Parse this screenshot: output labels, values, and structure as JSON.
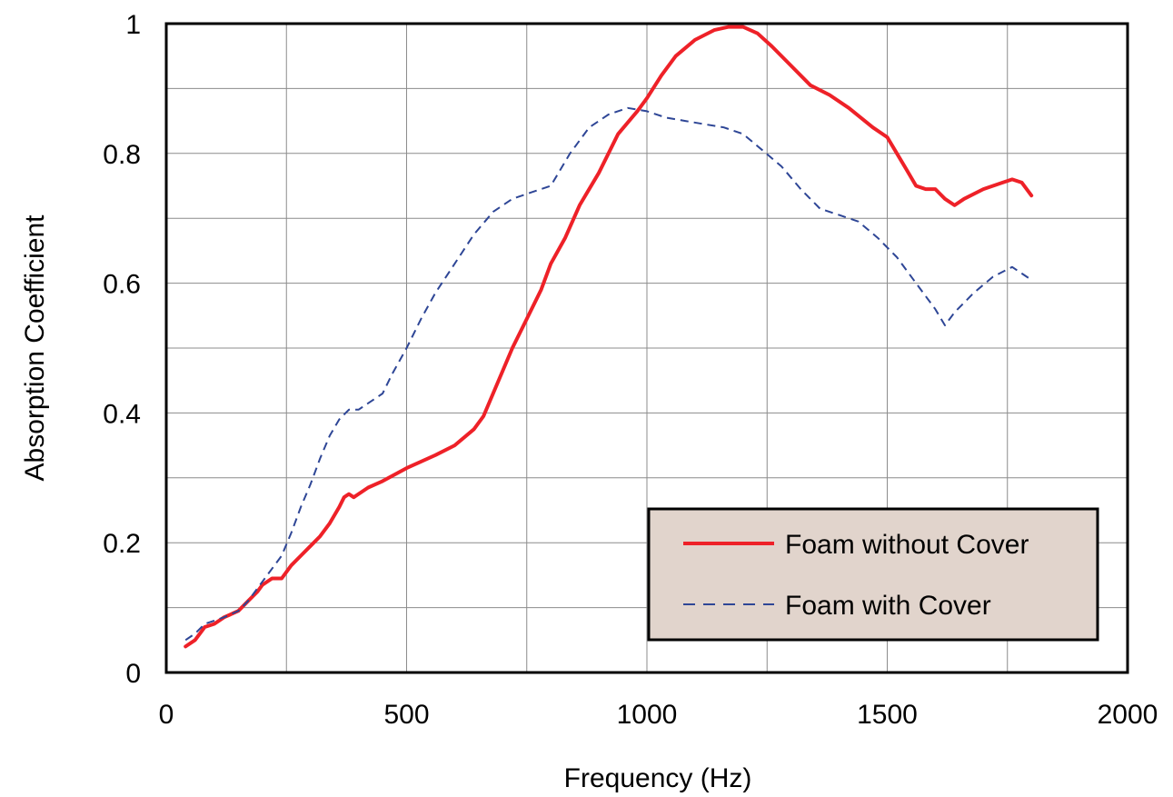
{
  "chart_data": {
    "type": "line",
    "title": "",
    "xlabel": "Frequency (Hz)",
    "ylabel": "Absorption Coefficient",
    "xlim": [
      0,
      2000
    ],
    "ylim": [
      0,
      1
    ],
    "x_ticks": [
      "0",
      "500",
      "1000",
      "1500",
      "2000"
    ],
    "y_ticks": [
      "0",
      "0.2",
      "0.4",
      "0.6",
      "0.8",
      "1"
    ],
    "x_tick_values": [
      0,
      500,
      1000,
      1500,
      2000
    ],
    "y_tick_values": [
      0,
      0.2,
      0.4,
      0.6,
      0.8,
      1
    ],
    "minor_x_grid": [
      250,
      750,
      1250,
      1750
    ],
    "minor_y_grid": [
      0.1,
      0.3,
      0.5,
      0.7,
      0.9
    ],
    "grid": true,
    "legend_position": "bottom-right",
    "series": [
      {
        "name": "Foam without Cover",
        "color": "#ee2128",
        "style": "solid",
        "x": [
          40,
          60,
          80,
          100,
          120,
          150,
          170,
          190,
          200,
          220,
          240,
          260,
          280,
          300,
          320,
          340,
          360,
          370,
          380,
          390,
          400,
          420,
          450,
          500,
          530,
          560,
          600,
          640,
          660,
          680,
          700,
          720,
          750,
          780,
          800,
          830,
          860,
          900,
          940,
          980,
          1000,
          1030,
          1060,
          1100,
          1140,
          1170,
          1200,
          1230,
          1260,
          1300,
          1340,
          1380,
          1420,
          1470,
          1500,
          1520,
          1540,
          1560,
          1580,
          1600,
          1620,
          1640,
          1660,
          1700,
          1740,
          1760,
          1780,
          1800
        ],
        "y": [
          0.04,
          0.05,
          0.07,
          0.075,
          0.085,
          0.095,
          0.11,
          0.125,
          0.135,
          0.145,
          0.145,
          0.165,
          0.18,
          0.195,
          0.21,
          0.23,
          0.255,
          0.27,
          0.275,
          0.27,
          0.275,
          0.285,
          0.295,
          0.315,
          0.325,
          0.335,
          0.35,
          0.375,
          0.395,
          0.43,
          0.465,
          0.5,
          0.545,
          0.59,
          0.63,
          0.67,
          0.72,
          0.77,
          0.83,
          0.865,
          0.885,
          0.92,
          0.95,
          0.975,
          0.99,
          0.995,
          0.995,
          0.985,
          0.965,
          0.935,
          0.905,
          0.89,
          0.87,
          0.84,
          0.825,
          0.8,
          0.775,
          0.75,
          0.745,
          0.745,
          0.73,
          0.72,
          0.73,
          0.745,
          0.755,
          0.76,
          0.755,
          0.735
        ]
      },
      {
        "name": "Foam with Cover",
        "color": "#2e4696",
        "style": "dashed",
        "x": [
          40,
          60,
          80,
          100,
          120,
          150,
          170,
          190,
          210,
          240,
          260,
          280,
          300,
          320,
          340,
          360,
          380,
          400,
          420,
          450,
          470,
          500,
          530,
          560,
          600,
          640,
          680,
          720,
          760,
          800,
          840,
          880,
          920,
          960,
          1000,
          1040,
          1080,
          1120,
          1160,
          1200,
          1240,
          1280,
          1320,
          1360,
          1400,
          1440,
          1480,
          1520,
          1560,
          1600,
          1620,
          1640,
          1680,
          1720,
          1760,
          1800
        ],
        "y": [
          0.05,
          0.06,
          0.075,
          0.08,
          0.085,
          0.095,
          0.11,
          0.13,
          0.15,
          0.18,
          0.215,
          0.255,
          0.29,
          0.33,
          0.365,
          0.39,
          0.405,
          0.405,
          0.415,
          0.43,
          0.46,
          0.5,
          0.545,
          0.585,
          0.63,
          0.675,
          0.71,
          0.73,
          0.74,
          0.75,
          0.8,
          0.84,
          0.86,
          0.87,
          0.865,
          0.855,
          0.85,
          0.845,
          0.84,
          0.83,
          0.805,
          0.78,
          0.745,
          0.715,
          0.705,
          0.695,
          0.67,
          0.64,
          0.6,
          0.56,
          0.535,
          0.555,
          0.585,
          0.61,
          0.625,
          0.605
        ]
      }
    ]
  }
}
